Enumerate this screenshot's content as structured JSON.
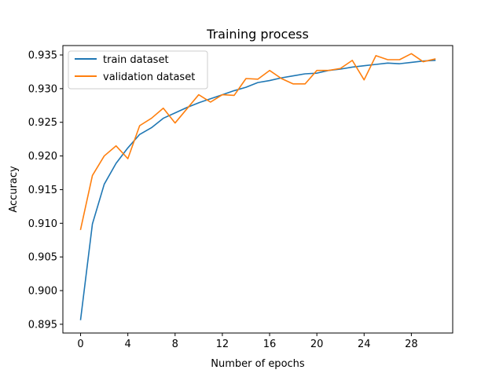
{
  "chart_data": {
    "type": "line",
    "title": "Training process",
    "xlabel": "Number of epochs",
    "ylabel": "Accuracy",
    "xlim": [
      -1.5,
      31.5
    ],
    "ylim": [
      0.8937,
      0.9364
    ],
    "xticks": [
      0,
      4,
      8,
      12,
      16,
      20,
      24,
      28
    ],
    "xtick_labels": [
      "0",
      "4",
      "8",
      "12",
      "16",
      "20",
      "24",
      "28"
    ],
    "yticks": [
      0.895,
      0.9,
      0.905,
      0.91,
      0.915,
      0.92,
      0.925,
      0.93,
      0.935
    ],
    "ytick_labels": [
      "0.895",
      "0.900",
      "0.905",
      "0.910",
      "0.915",
      "0.920",
      "0.925",
      "0.930",
      "0.935"
    ],
    "grid": false,
    "legend_position": "top-left",
    "x": [
      0,
      1,
      2,
      3,
      4,
      5,
      6,
      7,
      8,
      9,
      10,
      11,
      12,
      13,
      14,
      15,
      16,
      17,
      18,
      19,
      20,
      21,
      22,
      23,
      24,
      25,
      26,
      27,
      28,
      29,
      30
    ],
    "series": [
      {
        "name": "train dataset",
        "color": "#1f77b4",
        "values": [
          0.8957,
          0.9099,
          0.9158,
          0.9189,
          0.9212,
          0.9232,
          0.9242,
          0.9256,
          0.9264,
          0.9272,
          0.9279,
          0.9285,
          0.9291,
          0.9297,
          0.9302,
          0.9309,
          0.9312,
          0.9316,
          0.9319,
          0.9322,
          0.9323,
          0.9327,
          0.9329,
          0.9332,
          0.9334,
          0.9336,
          0.9338,
          0.9337,
          0.9339,
          0.9341,
          0.9342
        ]
      },
      {
        "name": "validation dataset",
        "color": "#ff7f0e",
        "values": [
          0.9091,
          0.9171,
          0.92,
          0.9215,
          0.9196,
          0.9245,
          0.9256,
          0.9271,
          0.9249,
          0.927,
          0.9291,
          0.928,
          0.9291,
          0.929,
          0.9315,
          0.9314,
          0.9327,
          0.9315,
          0.9307,
          0.9307,
          0.9327,
          0.9327,
          0.933,
          0.9342,
          0.9313,
          0.9349,
          0.9343,
          0.9343,
          0.9352,
          0.934,
          0.9344
        ]
      }
    ]
  }
}
